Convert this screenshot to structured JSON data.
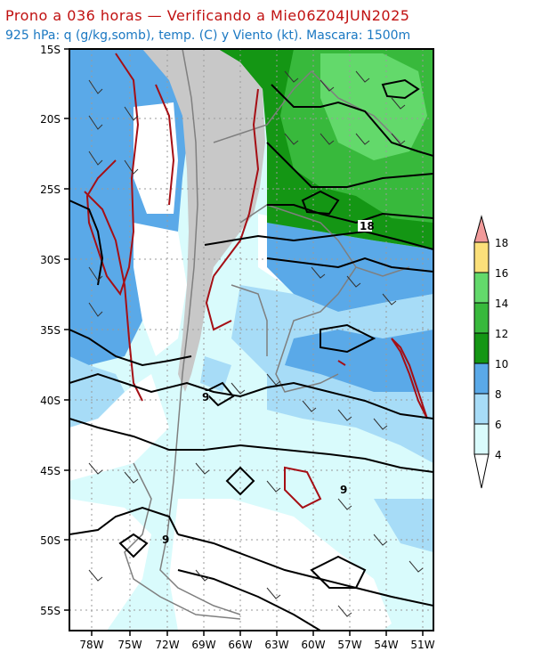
{
  "title": "Prono a 036 horas — Verificando a Mie06Z04JUN2025",
  "subtitle": "925 hPa: q (g/kg,somb), temp. (C) y Viento (kt). Mascara: 1500m",
  "lat_labels": [
    "15S",
    "20S",
    "25S",
    "30S",
    "35S",
    "40S",
    "45S",
    "50S",
    "55S"
  ],
  "lon_labels": [
    "78W",
    "75W",
    "72W",
    "69W",
    "66W",
    "63W",
    "60W",
    "57W",
    "54W",
    "51W"
  ],
  "contour_labels": [
    "18",
    "9",
    "9",
    "9"
  ],
  "colorbar": {
    "ticks": [
      "4",
      "6",
      "8",
      "10",
      "12",
      "14",
      "16",
      "18"
    ],
    "colors": {
      "lt4": "#ffffff",
      "4_6": "#d9fbfc",
      "6_8": "#a7dcf7",
      "8_10": "#5aa9e8",
      "10_12": "#149614",
      "12_14": "#38b93c",
      "14_16": "#63d96b",
      "16_18": "#fbe07a",
      "gt18": "#f19a9a"
    }
  },
  "colors": {
    "mask": "#c8c8c8",
    "temp_contour": "#000000",
    "humidity_contour": "#a50f15",
    "border": "#7f7f7f",
    "wind": "#333333"
  }
}
